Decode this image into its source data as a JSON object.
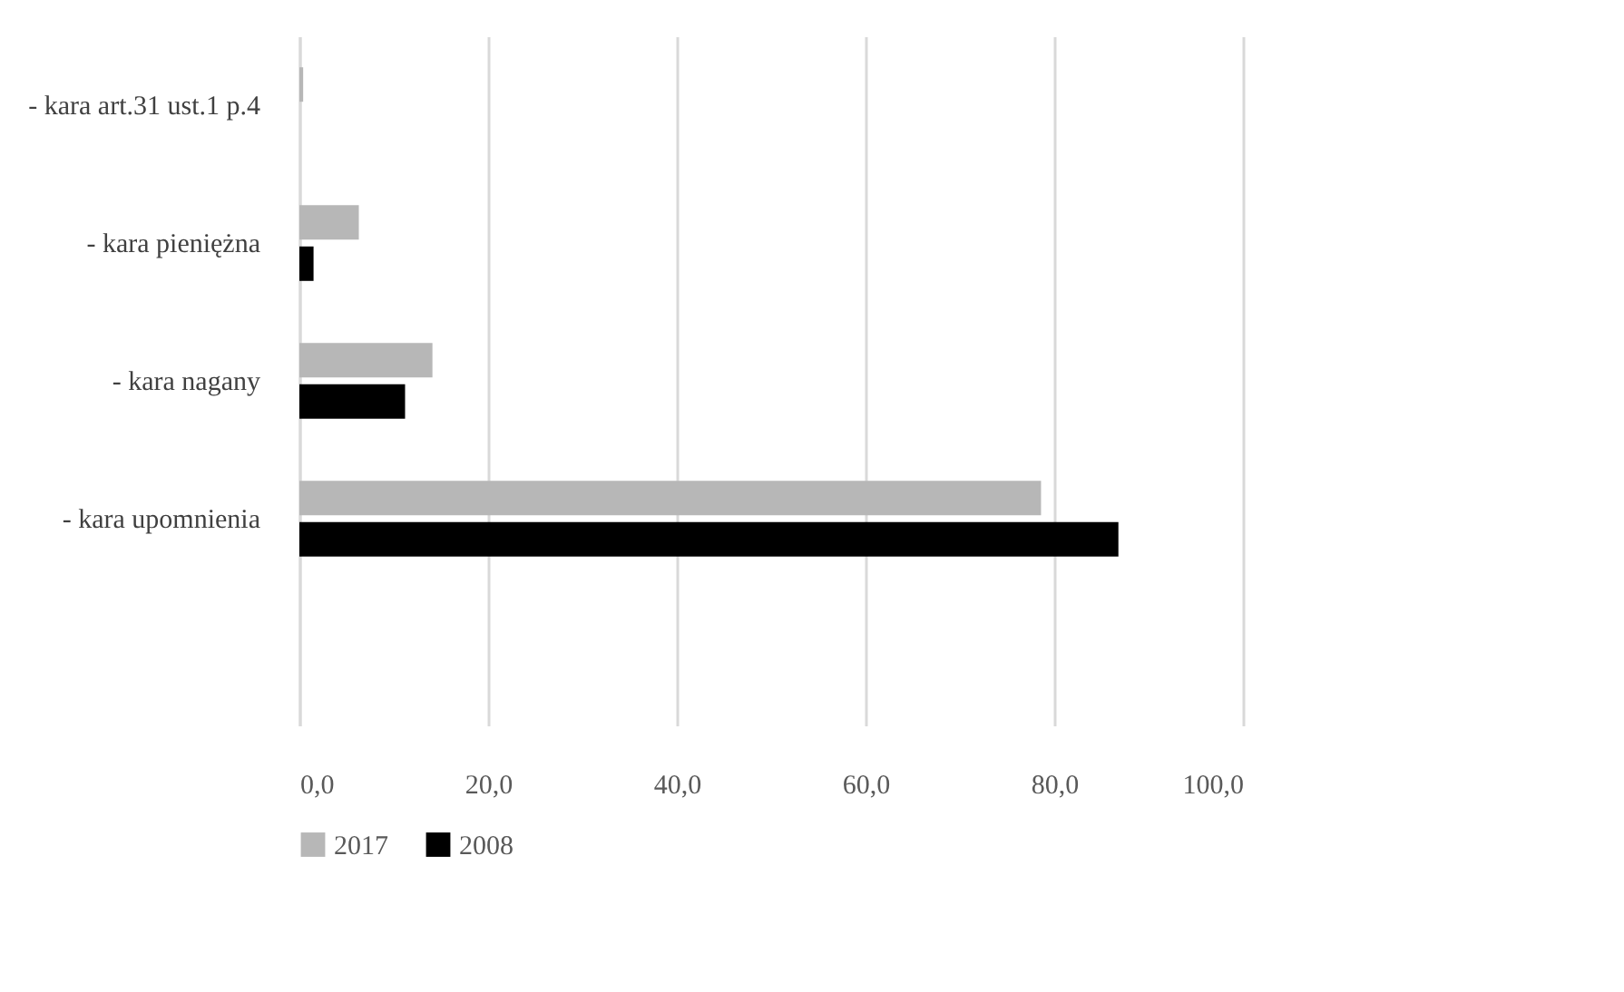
{
  "chart_data": {
    "type": "bar",
    "orientation": "horizontal",
    "categories": [
      "- kara art.31 ust.1 p.4",
      "- kara pieniężna",
      "- kara nagany",
      "- kara upomnienia",
      null
    ],
    "series": [
      {
        "name": "2017",
        "color": "#b7b7b7",
        "values": [
          0.4,
          6.3,
          14.1,
          78.6,
          null
        ]
      },
      {
        "name": "2008",
        "color": "#000000",
        "values": [
          0.0,
          1.5,
          11.2,
          86.8,
          null
        ]
      }
    ],
    "xlim": [
      0,
      100
    ],
    "xticks": [
      {
        "value": 0,
        "label": "0,0"
      },
      {
        "value": 20,
        "label": "20,0"
      },
      {
        "value": 40,
        "label": "40,0"
      },
      {
        "value": 60,
        "label": "60,0"
      },
      {
        "value": 80,
        "label": "80,0"
      },
      {
        "value": 100,
        "label": "100,0"
      }
    ],
    "grid": "x",
    "legend": "bottom"
  }
}
